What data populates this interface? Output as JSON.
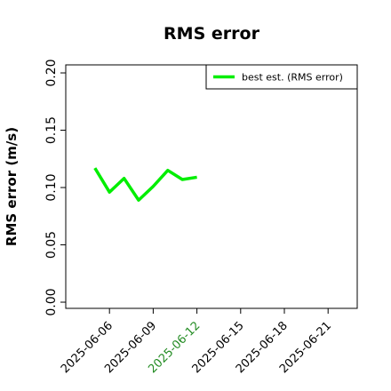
{
  "chart_data": {
    "type": "line",
    "title": "RMS error",
    "ylabel": "RMS error (m/s)",
    "x": [
      "2025-06-05",
      "2025-06-06",
      "2025-06-07",
      "2025-06-08",
      "2025-06-09",
      "2025-06-10",
      "2025-06-11",
      "2025-06-12"
    ],
    "series": [
      {
        "name": "best est. (RMS error)",
        "color": "#00ee00",
        "values": [
          0.117,
          0.096,
          0.108,
          0.089,
          0.101,
          0.115,
          0.107,
          0.109
        ]
      }
    ],
    "xlim": [
      "2025-06-03",
      "2025-06-23"
    ],
    "xticks": [
      "2025-06-06",
      "2025-06-09",
      "2025-06-12",
      "2025-06-15",
      "2025-06-18",
      "2025-06-21"
    ],
    "highlight_xtick": "2025-06-12",
    "highlight_color": "#228b22",
    "ylim": [
      -0.0054,
      0.207
    ],
    "yticks": [
      {
        "value": 0,
        "label": "0.00"
      },
      {
        "value": 0.05,
        "label": "0.05"
      },
      {
        "value": 0.1,
        "label": "0.10"
      },
      {
        "value": 0.15,
        "label": "0.15"
      },
      {
        "value": 0.2,
        "label": "0.20"
      }
    ],
    "legend": "upper right"
  }
}
